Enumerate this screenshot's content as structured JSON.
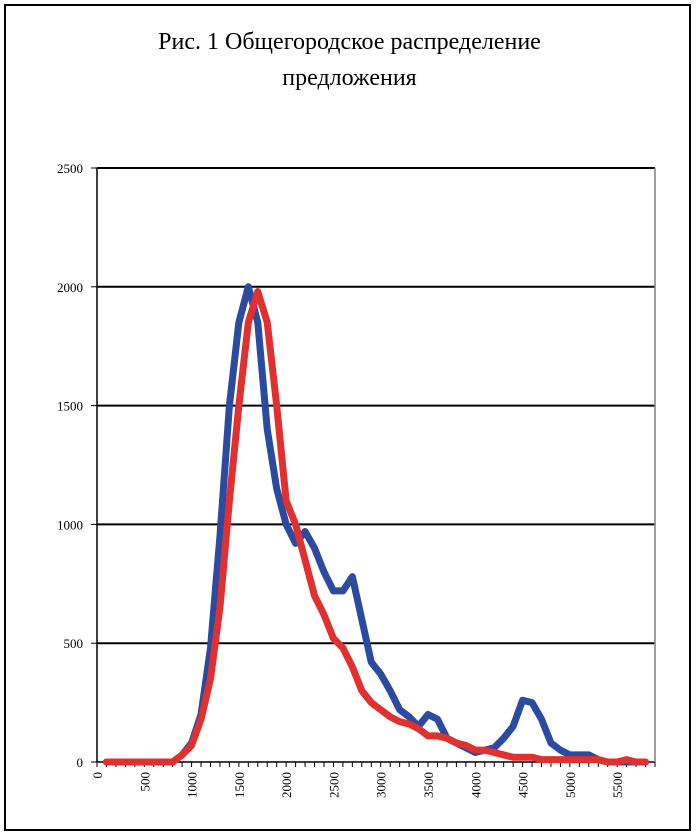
{
  "chart_data": {
    "type": "line",
    "title_lines": [
      "Рис. 1 Общегородское распределение",
      "предложения"
    ],
    "ylim": [
      0,
      2500
    ],
    "xlim": [
      0,
      5900
    ],
    "y_ticks": [
      0,
      500,
      1000,
      1500,
      2000,
      2500
    ],
    "x_ticks": [
      0,
      500,
      1000,
      1500,
      2000,
      2500,
      3000,
      3500,
      4000,
      4500,
      5000,
      5500
    ],
    "grid": true,
    "x": [
      100,
      200,
      300,
      400,
      500,
      600,
      700,
      800,
      900,
      1000,
      1100,
      1200,
      1300,
      1400,
      1500,
      1600,
      1700,
      1800,
      1900,
      2000,
      2100,
      2200,
      2300,
      2400,
      2500,
      2600,
      2700,
      2800,
      2900,
      3000,
      3100,
      3200,
      3300,
      3400,
      3500,
      3600,
      3700,
      3800,
      3900,
      4000,
      4100,
      4200,
      4300,
      4400,
      4500,
      4600,
      4700,
      4800,
      4900,
      5000,
      5100,
      5200,
      5300,
      5400,
      5500,
      5600,
      5700,
      5800
    ],
    "series": [
      {
        "color": "#2b4aa0",
        "values": [
          0,
          0,
          0,
          0,
          0,
          0,
          0,
          0,
          30,
          80,
          200,
          480,
          950,
          1500,
          1850,
          2000,
          1850,
          1400,
          1150,
          1000,
          920,
          970,
          900,
          800,
          720,
          720,
          780,
          600,
          420,
          370,
          300,
          220,
          190,
          150,
          200,
          180,
          100,
          80,
          60,
          40,
          50,
          60,
          100,
          150,
          260,
          250,
          180,
          80,
          50,
          30,
          30,
          30,
          10,
          0,
          0,
          0,
          0,
          0
        ],
        "stroke_width": 7
      },
      {
        "color": "#e03030",
        "values": [
          0,
          0,
          0,
          0,
          0,
          0,
          0,
          0,
          30,
          70,
          180,
          350,
          650,
          1100,
          1500,
          1850,
          1980,
          1850,
          1500,
          1100,
          1000,
          850,
          700,
          620,
          520,
          480,
          400,
          300,
          250,
          220,
          190,
          170,
          160,
          140,
          110,
          110,
          100,
          80,
          70,
          50,
          50,
          40,
          30,
          20,
          20,
          20,
          10,
          10,
          10,
          10,
          10,
          10,
          10,
          0,
          0,
          10,
          0,
          0
        ],
        "stroke_width": 7
      }
    ]
  },
  "colors": {
    "grid": "#000000",
    "axis": "#000000",
    "frame_right": "#808080"
  }
}
